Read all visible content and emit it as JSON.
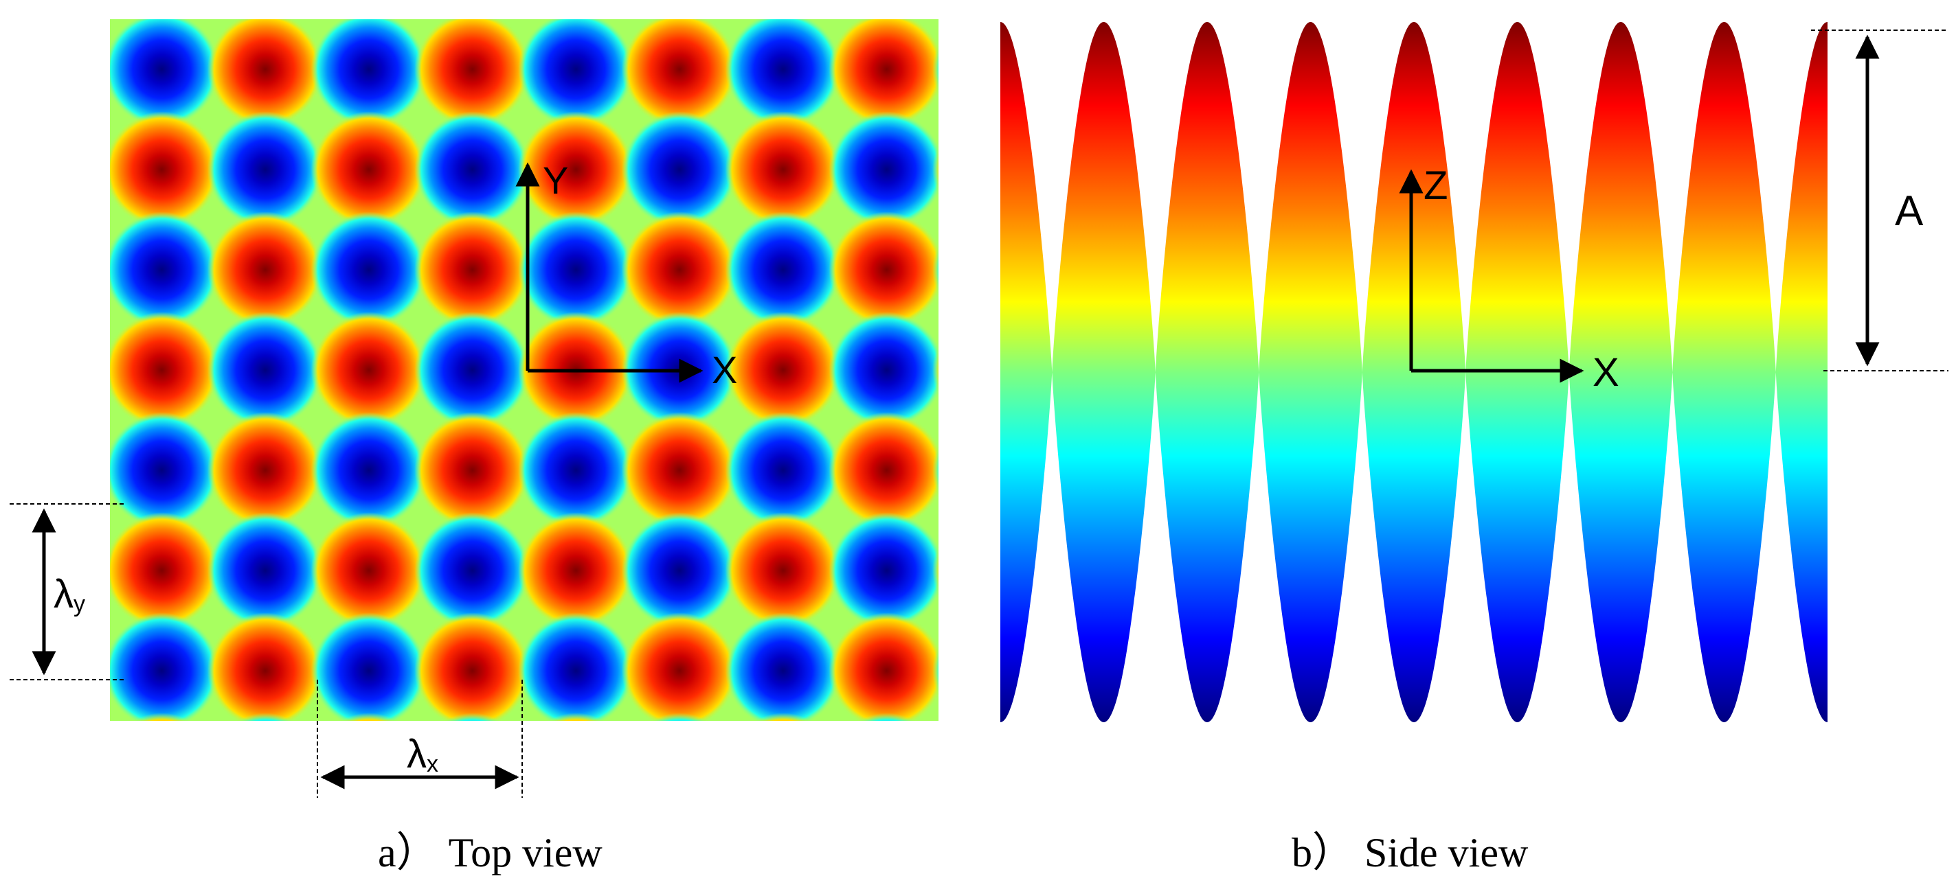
{
  "top_view": {
    "axis_y_label": "Y",
    "axis_x_label": "X",
    "lambda_y": {
      "symbol": "λ",
      "subscript": "y"
    },
    "lambda_x": {
      "symbol": "λ",
      "subscript": "x"
    },
    "caption_tag": "a）",
    "caption_text": "Top view",
    "colormap": [
      "#00007f",
      "#0000ff",
      "#007fff",
      "#00ffff",
      "#7fff7f",
      "#ffff00",
      "#ff7f00",
      "#ff0000",
      "#7f0000"
    ]
  },
  "side_view": {
    "axis_z_label": "Z",
    "axis_x_label": "X",
    "amplitude_label": "A",
    "caption_tag": "b）",
    "caption_text": "Side view",
    "colormap": [
      "#7f0000",
      "#ff0000",
      "#ff7f00",
      "#ffff00",
      "#7fff7f",
      "#00ffff",
      "#007fff",
      "#0000ff",
      "#00007f"
    ]
  }
}
